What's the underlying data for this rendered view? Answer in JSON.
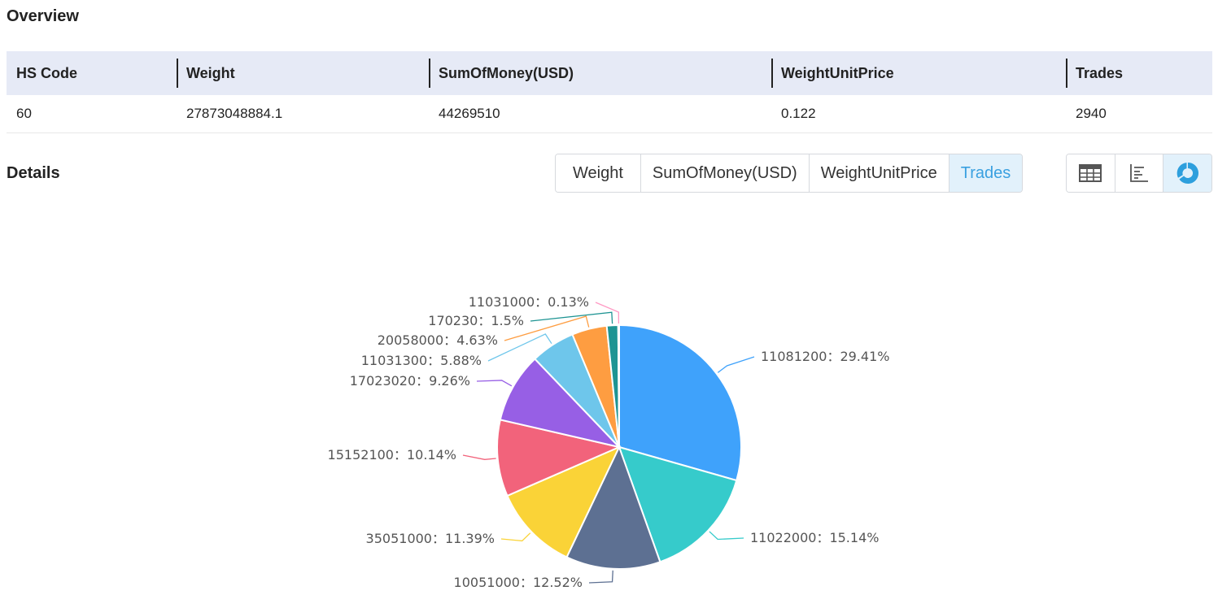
{
  "overview": {
    "title": "Overview",
    "columns": [
      "HS Code",
      "Weight",
      "SumOfMoney(USD)",
      "WeightUnitPrice",
      "Trades"
    ],
    "row": [
      "60",
      "27873048884.1",
      "44269510",
      "0.122",
      "2940"
    ]
  },
  "details": {
    "title": "Details",
    "metric_tabs": [
      "Weight",
      "SumOfMoney(USD)",
      "WeightUnitPrice",
      "Trades"
    ],
    "active_metric": "Trades",
    "view_buttons": [
      "table-view-icon",
      "bar-chart-icon",
      "pie-chart-icon"
    ],
    "active_view": "pie-chart-icon"
  },
  "chart_data": {
    "type": "pie",
    "categories": [
      "11081200",
      "11022000",
      "10051000",
      "35051000",
      "15152100",
      "17023020",
      "11031300",
      "20058000",
      "170230",
      "11031000"
    ],
    "values": [
      29.41,
      15.14,
      12.52,
      11.39,
      10.14,
      9.26,
      5.88,
      4.63,
      1.5,
      0.13
    ],
    "labels": [
      "11081200：29.41%",
      "11022000：15.14%",
      "10051000：12.52%",
      "35051000：11.39%",
      "15152100：10.14%",
      "17023020：9.26%",
      "11031300：5.88%",
      "20058000：4.63%",
      "170230：1.5%",
      "11031000：0.13%"
    ],
    "colors": [
      "#3fa2fb",
      "#36cbcb",
      "#5d7092",
      "#fad337",
      "#f2637b",
      "#975fe5",
      "#6ec6eb",
      "#fe9d41",
      "#1e9493",
      "#ff99c3"
    ]
  }
}
